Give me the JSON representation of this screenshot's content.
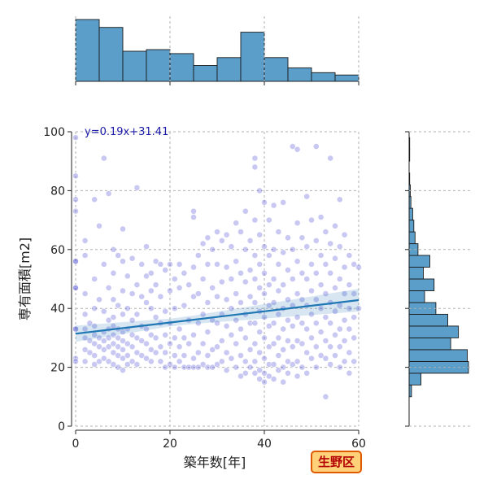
{
  "chart_data": {
    "type": "scatter",
    "xlabel": "築年数[年]",
    "ylabel": "専有面積[m2]",
    "xlim": [
      0,
      60
    ],
    "ylim": [
      0,
      100
    ],
    "xticks": [
      "0",
      "20",
      "40",
      "60"
    ],
    "yticks": [
      "0",
      "20",
      "40",
      "60",
      "80",
      "100"
    ],
    "grid": true,
    "regression": {
      "label": "y=0.19x+31.41",
      "slope": 0.19,
      "intercept": 31.41,
      "color": "#1f77b4"
    },
    "points_color": "#3a3ad0",
    "points": [
      [
        0,
        98
      ],
      [
        0,
        85
      ],
      [
        0,
        77
      ],
      [
        0,
        73
      ],
      [
        0,
        56
      ],
      [
        0,
        56
      ],
      [
        0,
        47
      ],
      [
        0,
        47
      ],
      [
        0,
        33
      ],
      [
        0,
        33
      ],
      [
        0,
        23
      ],
      [
        0,
        22
      ],
      [
        2,
        63
      ],
      [
        2,
        58
      ],
      [
        2,
        45
      ],
      [
        2,
        38
      ],
      [
        2,
        33
      ],
      [
        2,
        30
      ],
      [
        2,
        26
      ],
      [
        2,
        22
      ],
      [
        3,
        35
      ],
      [
        3,
        29
      ],
      [
        3,
        25
      ],
      [
        4,
        77
      ],
      [
        4,
        50
      ],
      [
        4,
        40
      ],
      [
        4,
        34
      ],
      [
        4,
        31
      ],
      [
        4,
        28
      ],
      [
        4,
        24
      ],
      [
        4,
        21
      ],
      [
        5,
        68
      ],
      [
        5,
        43
      ],
      [
        5,
        30
      ],
      [
        5,
        27
      ],
      [
        5,
        22
      ],
      [
        6,
        91
      ],
      [
        6,
        55
      ],
      [
        6,
        39
      ],
      [
        6,
        32
      ],
      [
        6,
        29
      ],
      [
        6,
        26
      ],
      [
        6,
        23
      ],
      [
        7,
        47
      ],
      [
        7,
        36
      ],
      [
        7,
        33
      ],
      [
        7,
        30
      ],
      [
        7,
        27
      ],
      [
        7,
        22
      ],
      [
        7,
        79
      ],
      [
        8,
        60
      ],
      [
        8,
        52
      ],
      [
        8,
        43
      ],
      [
        8,
        37
      ],
      [
        8,
        34
      ],
      [
        8,
        31
      ],
      [
        8,
        28
      ],
      [
        8,
        25
      ],
      [
        8,
        21
      ],
      [
        9,
        58
      ],
      [
        9,
        41
      ],
      [
        9,
        33
      ],
      [
        9,
        30
      ],
      [
        9,
        27
      ],
      [
        9,
        24
      ],
      [
        9,
        20
      ],
      [
        10,
        67
      ],
      [
        10,
        56
      ],
      [
        10,
        46
      ],
      [
        10,
        38
      ],
      [
        10,
        32
      ],
      [
        10,
        29
      ],
      [
        10,
        26
      ],
      [
        10,
        23
      ],
      [
        10,
        19
      ],
      [
        11,
        51
      ],
      [
        11,
        40
      ],
      [
        11,
        33
      ],
      [
        11,
        28
      ],
      [
        11,
        24
      ],
      [
        11,
        21
      ],
      [
        12,
        57
      ],
      [
        12,
        45
      ],
      [
        12,
        36
      ],
      [
        12,
        31
      ],
      [
        12,
        27
      ],
      [
        12,
        22
      ],
      [
        13,
        81
      ],
      [
        13,
        48
      ],
      [
        13,
        38
      ],
      [
        13,
        30
      ],
      [
        13,
        25
      ],
      [
        13,
        21
      ],
      [
        14,
        55
      ],
      [
        14,
        44
      ],
      [
        14,
        34
      ],
      [
        14,
        29
      ],
      [
        14,
        24
      ],
      [
        15,
        61
      ],
      [
        15,
        51
      ],
      [
        15,
        42
      ],
      [
        15,
        33
      ],
      [
        15,
        28
      ],
      [
        15,
        23
      ],
      [
        16,
        52
      ],
      [
        16,
        46
      ],
      [
        16,
        40
      ],
      [
        16,
        31
      ],
      [
        16,
        26
      ],
      [
        16,
        22
      ],
      [
        17,
        56
      ],
      [
        17,
        48
      ],
      [
        17,
        37
      ],
      [
        17,
        30
      ],
      [
        17,
        25
      ],
      [
        18,
        55
      ],
      [
        18,
        44
      ],
      [
        18,
        35
      ],
      [
        18,
        27
      ],
      [
        18,
        22
      ],
      [
        19,
        53
      ],
      [
        19,
        39
      ],
      [
        19,
        31
      ],
      [
        19,
        25
      ],
      [
        19,
        20
      ],
      [
        20,
        55
      ],
      [
        20,
        46
      ],
      [
        20,
        35
      ],
      [
        20,
        28
      ],
      [
        20,
        21
      ],
      [
        21,
        50
      ],
      [
        21,
        40
      ],
      [
        21,
        30
      ],
      [
        21,
        24
      ],
      [
        21,
        20
      ],
      [
        22,
        55
      ],
      [
        22,
        47
      ],
      [
        22,
        33
      ],
      [
        22,
        27
      ],
      [
        22,
        22
      ],
      [
        23,
        52
      ],
      [
        23,
        41
      ],
      [
        23,
        30
      ],
      [
        23,
        24
      ],
      [
        23,
        20
      ],
      [
        24,
        48
      ],
      [
        24,
        36
      ],
      [
        24,
        28
      ],
      [
        24,
        20
      ],
      [
        25,
        73
      ],
      [
        25,
        71
      ],
      [
        25,
        54
      ],
      [
        25,
        44
      ],
      [
        25,
        31
      ],
      [
        25,
        23
      ],
      [
        25,
        20
      ],
      [
        26,
        58
      ],
      [
        26,
        45
      ],
      [
        26,
        35
      ],
      [
        26,
        25
      ],
      [
        26,
        20
      ],
      [
        27,
        62
      ],
      [
        27,
        50
      ],
      [
        27,
        38
      ],
      [
        27,
        28
      ],
      [
        27,
        21
      ],
      [
        28,
        64
      ],
      [
        28,
        55
      ],
      [
        28,
        42
      ],
      [
        28,
        32
      ],
      [
        28,
        24
      ],
      [
        28,
        20
      ],
      [
        29,
        60
      ],
      [
        29,
        47
      ],
      [
        29,
        36
      ],
      [
        29,
        26
      ],
      [
        29,
        20
      ],
      [
        30,
        66
      ],
      [
        30,
        55
      ],
      [
        30,
        44
      ],
      [
        30,
        35
      ],
      [
        30,
        27
      ],
      [
        30,
        21
      ],
      [
        31,
        63
      ],
      [
        31,
        49
      ],
      [
        31,
        38
      ],
      [
        31,
        29
      ],
      [
        31,
        22
      ],
      [
        32,
        65
      ],
      [
        32,
        54
      ],
      [
        32,
        43
      ],
      [
        32,
        34
      ],
      [
        32,
        25
      ],
      [
        32,
        19
      ],
      [
        33,
        61
      ],
      [
        33,
        50
      ],
      [
        33,
        40
      ],
      [
        33,
        31
      ],
      [
        33,
        23
      ],
      [
        34,
        69
      ],
      [
        34,
        56
      ],
      [
        34,
        45
      ],
      [
        34,
        36
      ],
      [
        34,
        28
      ],
      [
        34,
        20
      ],
      [
        35,
        66
      ],
      [
        35,
        52
      ],
      [
        35,
        42
      ],
      [
        35,
        33
      ],
      [
        35,
        24
      ],
      [
        35,
        17
      ],
      [
        36,
        73
      ],
      [
        36,
        60
      ],
      [
        36,
        49
      ],
      [
        36,
        38
      ],
      [
        36,
        30
      ],
      [
        36,
        22
      ],
      [
        36,
        18
      ],
      [
        37,
        63
      ],
      [
        37,
        53
      ],
      [
        37,
        44
      ],
      [
        37,
        35
      ],
      [
        37,
        26
      ],
      [
        37,
        20
      ],
      [
        38,
        91
      ],
      [
        38,
        88
      ],
      [
        38,
        70
      ],
      [
        38,
        58
      ],
      [
        38,
        50
      ],
      [
        38,
        42
      ],
      [
        38,
        35
      ],
      [
        38,
        28
      ],
      [
        38,
        22
      ],
      [
        38,
        18
      ],
      [
        39,
        80
      ],
      [
        39,
        65
      ],
      [
        39,
        55
      ],
      [
        39,
        47
      ],
      [
        39,
        39
      ],
      [
        39,
        32
      ],
      [
        39,
        25
      ],
      [
        39,
        19
      ],
      [
        39,
        16
      ],
      [
        40,
        76
      ],
      [
        40,
        61
      ],
      [
        40,
        52
      ],
      [
        40,
        45
      ],
      [
        40,
        37
      ],
      [
        40,
        30
      ],
      [
        40,
        23
      ],
      [
        40,
        18
      ],
      [
        40,
        15
      ],
      [
        41,
        70
      ],
      [
        41,
        58
      ],
      [
        41,
        48
      ],
      [
        41,
        41
      ],
      [
        41,
        34
      ],
      [
        41,
        27
      ],
      [
        41,
        21
      ],
      [
        41,
        17
      ],
      [
        42,
        75
      ],
      [
        42,
        60
      ],
      [
        42,
        50
      ],
      [
        42,
        42
      ],
      [
        42,
        35
      ],
      [
        42,
        28
      ],
      [
        42,
        21
      ],
      [
        42,
        16
      ],
      [
        43,
        66
      ],
      [
        43,
        55
      ],
      [
        43,
        46
      ],
      [
        43,
        38
      ],
      [
        43,
        30
      ],
      [
        43,
        24
      ],
      [
        43,
        19
      ],
      [
        44,
        76
      ],
      [
        44,
        59
      ],
      [
        44,
        48
      ],
      [
        44,
        40
      ],
      [
        44,
        33
      ],
      [
        44,
        26
      ],
      [
        44,
        20
      ],
      [
        44,
        15
      ],
      [
        45,
        64
      ],
      [
        45,
        53
      ],
      [
        45,
        43
      ],
      [
        45,
        36
      ],
      [
        45,
        29
      ],
      [
        45,
        22
      ],
      [
        45,
        18
      ],
      [
        46,
        95
      ],
      [
        46,
        60
      ],
      [
        46,
        50
      ],
      [
        46,
        41
      ],
      [
        46,
        34
      ],
      [
        46,
        27
      ],
      [
        46,
        21
      ],
      [
        47,
        94
      ],
      [
        47,
        69
      ],
      [
        47,
        56
      ],
      [
        47,
        45
      ],
      [
        47,
        37
      ],
      [
        47,
        29
      ],
      [
        47,
        22
      ],
      [
        47,
        17
      ],
      [
        48,
        64
      ],
      [
        48,
        52
      ],
      [
        48,
        43
      ],
      [
        48,
        35
      ],
      [
        48,
        28
      ],
      [
        48,
        20
      ],
      [
        49,
        78
      ],
      [
        49,
        61
      ],
      [
        49,
        50
      ],
      [
        49,
        41
      ],
      [
        49,
        33
      ],
      [
        49,
        25
      ],
      [
        49,
        18
      ],
      [
        50,
        70
      ],
      [
        50,
        55
      ],
      [
        50,
        46
      ],
      [
        50,
        38
      ],
      [
        50,
        30
      ],
      [
        50,
        23
      ],
      [
        51,
        95
      ],
      [
        51,
        63
      ],
      [
        51,
        52
      ],
      [
        51,
        43
      ],
      [
        51,
        35
      ],
      [
        51,
        27
      ],
      [
        51,
        20
      ],
      [
        52,
        71
      ],
      [
        52,
        58
      ],
      [
        52,
        48
      ],
      [
        52,
        40
      ],
      [
        52,
        32
      ],
      [
        52,
        24
      ],
      [
        53,
        66
      ],
      [
        53,
        55
      ],
      [
        53,
        45
      ],
      [
        53,
        37
      ],
      [
        53,
        29
      ],
      [
        53,
        23
      ],
      [
        53,
        10
      ],
      [
        54,
        91
      ],
      [
        54,
        62
      ],
      [
        54,
        52
      ],
      [
        54,
        42
      ],
      [
        54,
        35
      ],
      [
        54,
        27
      ],
      [
        54,
        21
      ],
      [
        55,
        68
      ],
      [
        55,
        57
      ],
      [
        55,
        47
      ],
      [
        55,
        39
      ],
      [
        55,
        31
      ],
      [
        55,
        24
      ],
      [
        56,
        77
      ],
      [
        56,
        61
      ],
      [
        56,
        50
      ],
      [
        56,
        41
      ],
      [
        56,
        33
      ],
      [
        56,
        27
      ],
      [
        56,
        20
      ],
      [
        57,
        65
      ],
      [
        57,
        54
      ],
      [
        57,
        45
      ],
      [
        57,
        36
      ],
      [
        57,
        29
      ],
      [
        57,
        22
      ],
      [
        58,
        58
      ],
      [
        58,
        48
      ],
      [
        58,
        40
      ],
      [
        58,
        33
      ],
      [
        58,
        25
      ],
      [
        58,
        18
      ],
      [
        59,
        55
      ],
      [
        59,
        45
      ],
      [
        59,
        37
      ],
      [
        59,
        30
      ],
      [
        59,
        22
      ],
      [
        60,
        54
      ],
      [
        60,
        40
      ]
    ],
    "top_histogram": {
      "bin_edges": [
        0,
        5,
        10,
        15,
        20,
        25,
        30,
        35,
        40,
        45,
        50,
        55,
        60
      ],
      "values": [
        78,
        68,
        38,
        40,
        35,
        20,
        30,
        62,
        30,
        17,
        11,
        8
      ]
    },
    "right_histogram": {
      "bin_edges": [
        10,
        14,
        18,
        22,
        26,
        30,
        34,
        38,
        42,
        46,
        50,
        54,
        58,
        62,
        66,
        70,
        74,
        78,
        82,
        86,
        90,
        94,
        98
      ],
      "values": [
        4,
        20,
        100,
        98,
        70,
        83,
        65,
        45,
        26,
        42,
        24,
        35,
        15,
        10,
        8,
        6,
        3,
        2,
        1,
        0,
        1,
        1
      ]
    },
    "colors": {
      "hist_fill": "#5b9ec9",
      "hist_edge": "#1a1a1a",
      "grid": "#b0b0b0"
    }
  },
  "badge": {
    "text": "生野区",
    "fill": "#ffd27a",
    "border": "#e05a00"
  }
}
